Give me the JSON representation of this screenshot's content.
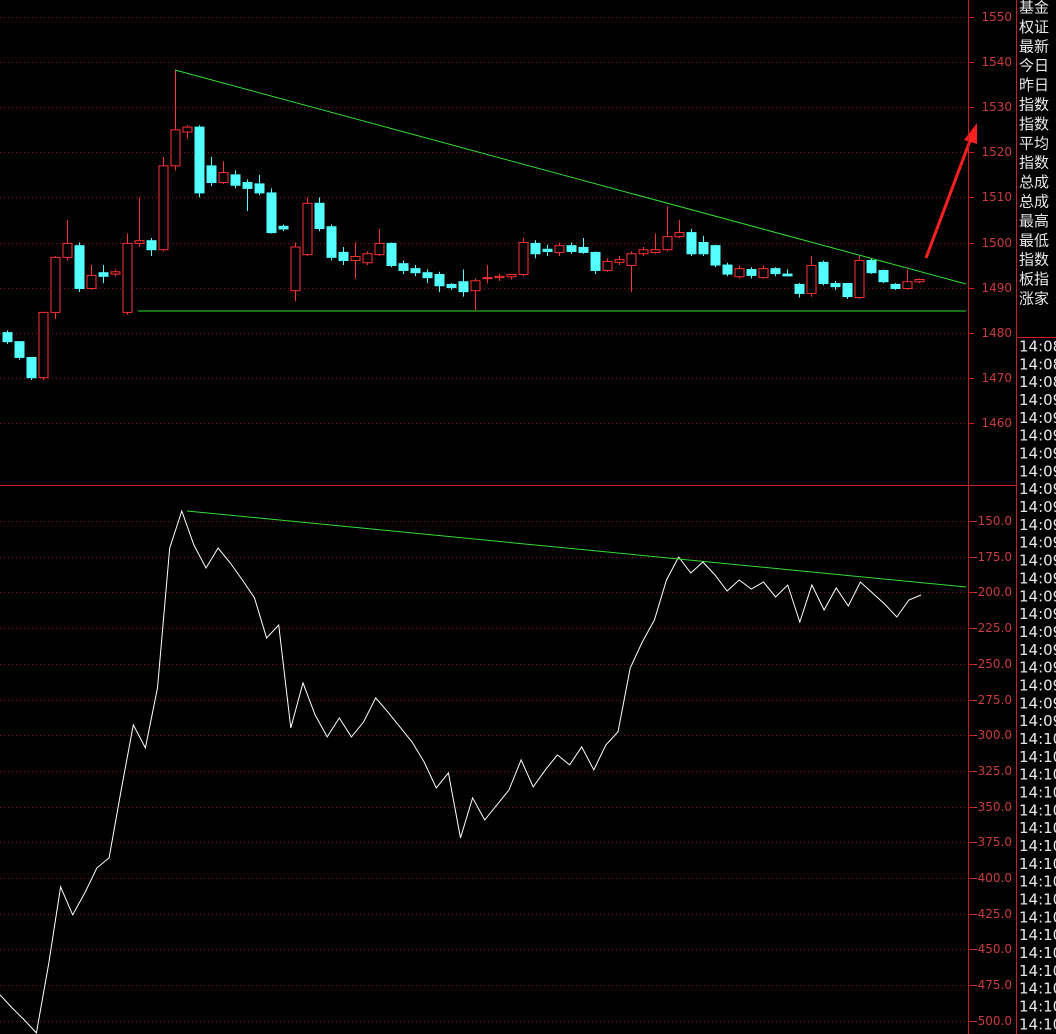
{
  "chart_data": [
    {
      "type": "candlestick",
      "open": [
        1480,
        1478,
        1474.5,
        1470,
        1484.5,
        1496.7,
        1499.3,
        1489.8,
        1493.3,
        1493,
        1484.5,
        1499.8,
        1500.4,
        1498.4,
        1517,
        1524.5,
        1525.6,
        1517,
        1513.3,
        1515,
        1513.3,
        1513,
        1511,
        1503.6,
        1489.3,
        1497.3,
        1508.7,
        1503.5,
        1497.8,
        1496,
        1495.5,
        1497.3,
        1499.8,
        1495.3,
        1494.2,
        1493.3,
        1492.9,
        1490.7,
        1491.3,
        1489.3,
        1492,
        1492.2,
        1492.4,
        1492.9,
        1499.8,
        1498.5,
        1497.8,
        1499.3,
        1498.9,
        1497.8,
        1493.8,
        1495.6,
        1494.9,
        1497.5,
        1497.8,
        1498.4,
        1501.3,
        1502.2,
        1500,
        1499.3,
        1495,
        1492.4,
        1494,
        1492.2,
        1494.2,
        1493,
        1490.7,
        1488.7,
        1495.6,
        1490.9,
        1490.9,
        1487.8,
        1496,
        1493.8,
        1490.7,
        1489.8,
        1491.3
      ],
      "high": [
        1480.5,
        1478,
        1474.5,
        1484.5,
        1497,
        1505,
        1500,
        1495,
        1495,
        1494,
        1502,
        1510,
        1501,
        1519,
        1538.2,
        1526,
        1526,
        1519,
        1518,
        1516,
        1514,
        1515,
        1512,
        1504,
        1500,
        1510,
        1510,
        1504,
        1499,
        1500,
        1498,
        1503,
        1500,
        1496,
        1495,
        1494,
        1493.5,
        1491,
        1494,
        1492,
        1495,
        1493,
        1493,
        1501,
        1500.5,
        1499.5,
        1500,
        1500,
        1501,
        1498,
        1496.5,
        1497,
        1498,
        1499,
        1502,
        1508,
        1505,
        1503,
        1501.5,
        1499.5,
        1495.5,
        1495,
        1494.5,
        1495,
        1494.5,
        1494,
        1491,
        1497,
        1496,
        1491.5,
        1491,
        1497,
        1496.5,
        1494,
        1491,
        1494,
        1492
      ],
      "low": [
        1477.5,
        1474,
        1469.5,
        1469.5,
        1483,
        1496,
        1489,
        1489.5,
        1491,
        1492.5,
        1484,
        1499,
        1497,
        1498,
        1516,
        1523,
        1510,
        1512.5,
        1513,
        1512,
        1507,
        1510.5,
        1502,
        1502.5,
        1487,
        1497,
        1502.5,
        1496,
        1495,
        1492,
        1495,
        1497,
        1494.5,
        1493,
        1492.5,
        1491,
        1489,
        1489.5,
        1488,
        1485,
        1491,
        1491.5,
        1491.8,
        1492.5,
        1496.5,
        1497,
        1497,
        1497.5,
        1497.5,
        1493,
        1493.5,
        1495,
        1489,
        1497,
        1497.5,
        1498,
        1501,
        1497,
        1497,
        1494.5,
        1492.5,
        1492,
        1492,
        1492,
        1492.5,
        1492.5,
        1487.8,
        1488,
        1490.5,
        1489.5,
        1487.5,
        1487.5,
        1493,
        1491,
        1489.5,
        1489.5,
        1491
      ],
      "close": [
        1478,
        1474.5,
        1470,
        1484.5,
        1496.7,
        1499.8,
        1489.8,
        1492.7,
        1492.5,
        1493.5,
        1499.8,
        1500.4,
        1498.4,
        1517,
        1525,
        1525.6,
        1511,
        1513.3,
        1515.5,
        1512.7,
        1512,
        1511,
        1502.2,
        1503,
        1499,
        1508.7,
        1503.1,
        1496.7,
        1496,
        1496.9,
        1497.5,
        1499.8,
        1494.9,
        1493.8,
        1493.3,
        1492.2,
        1490.4,
        1490,
        1489.1,
        1491.5,
        1492.2,
        1492.5,
        1492.9,
        1500,
        1497.5,
        1498,
        1499.3,
        1498,
        1497.8,
        1493.8,
        1495.8,
        1496.2,
        1497.5,
        1498.4,
        1498.4,
        1501.3,
        1502.2,
        1497.5,
        1497.5,
        1495,
        1493,
        1494.2,
        1492.7,
        1494.2,
        1493.1,
        1492.6,
        1488.7,
        1494.9,
        1490.9,
        1490.2,
        1488,
        1496,
        1493.3,
        1491.3,
        1489.8,
        1491.3,
        1491.8
      ],
      "up_color": "#ff3232",
      "down_color": "#54ffff",
      "ylim": [
        1446.2,
        1553.8
      ],
      "yticks": [
        1460,
        1470,
        1480,
        1490,
        1500,
        1510,
        1520,
        1530,
        1540,
        1550
      ],
      "grid": true
    },
    {
      "type": "line",
      "values": [
        -481.8,
        -490.9,
        -499.3,
        -508.4,
        -460.8,
        -406.2,
        -425.8,
        -410.4,
        -392.9,
        -385.9,
        -338.3,
        -292.8,
        -308.9,
        -266.9,
        -168.9,
        -143,
        -166.8,
        -182.9,
        -168.9,
        -179.4,
        -191.3,
        -203.9,
        -231.9,
        -222.8,
        -294.9,
        -263.4,
        -285.8,
        -301.2,
        -287.9,
        -301.2,
        -290.7,
        -273.9,
        -283.7,
        -294.2,
        -304.7,
        -318.7,
        -336.9,
        -326.4,
        -371.9,
        -343.9,
        -359.3,
        -348.8,
        -338.3,
        -317.3,
        -336.2,
        -324.3,
        -313.8,
        -320.8,
        -308.2,
        -324.3,
        -306.8,
        -297.7,
        -252.9,
        -234.7,
        -219.3,
        -191.3,
        -175.2,
        -186.4,
        -178.7,
        -187.8,
        -199,
        -191.3,
        -197.6,
        -192.7,
        -203.2,
        -194.8,
        -220.7,
        -194.8,
        -212.3,
        -196.9,
        -209.5,
        -192.7,
        -200.4,
        -208.1,
        -217.2,
        -205.3,
        -201.8
      ],
      "color": "#ffffff",
      "ylim": [
        -509.2,
        -126.2
      ],
      "yticks": [
        {
          "value": -150,
          "label": "-150.0"
        },
        {
          "value": -175,
          "label": "-175.0"
        },
        {
          "value": -200,
          "label": "-200.0"
        },
        {
          "value": -225,
          "label": "-225.0"
        },
        {
          "value": -250,
          "label": "-250.0"
        },
        {
          "value": -275,
          "label": "-275.0"
        },
        {
          "value": -300,
          "label": "-300.0"
        },
        {
          "value": -325,
          "label": "-325.0"
        },
        {
          "value": -350,
          "label": "-350.0"
        },
        {
          "value": -375,
          "label": "-375.0"
        },
        {
          "value": -400,
          "label": "-400.0"
        },
        {
          "value": -425,
          "label": "-425.0"
        },
        {
          "value": -450,
          "label": "-450.0"
        },
        {
          "value": -475,
          "label": "-475.0"
        },
        {
          "value": -500,
          "label": "-500.0"
        }
      ],
      "grid": true
    }
  ],
  "side_panel": {
    "labels": [
      "基金",
      "权证",
      "最新",
      "今日",
      "昨日",
      "指数",
      "指数",
      "平均",
      "指数",
      "总成",
      "总成",
      "最高",
      "最低",
      "指数",
      "板指",
      "涨家"
    ],
    "times": [
      "14:08",
      "14:08",
      "14:08",
      "14:09",
      "14:09",
      "14:09",
      "14:09",
      "14:09",
      "14:09",
      "14:09",
      "14:09",
      "14:09",
      "14:09",
      "14:09",
      "14:09",
      "14:09",
      "14:09",
      "14:09",
      "14:09",
      "14:09",
      "14:09",
      "14:09",
      "14:10",
      "14:10",
      "14:10",
      "14:10",
      "14:10",
      "14:10",
      "14:10",
      "14:10",
      "14:10",
      "14:10",
      "14:10",
      "14:10",
      "14:10",
      "14:10",
      "14:10",
      "14:10",
      "14:10"
    ]
  }
}
